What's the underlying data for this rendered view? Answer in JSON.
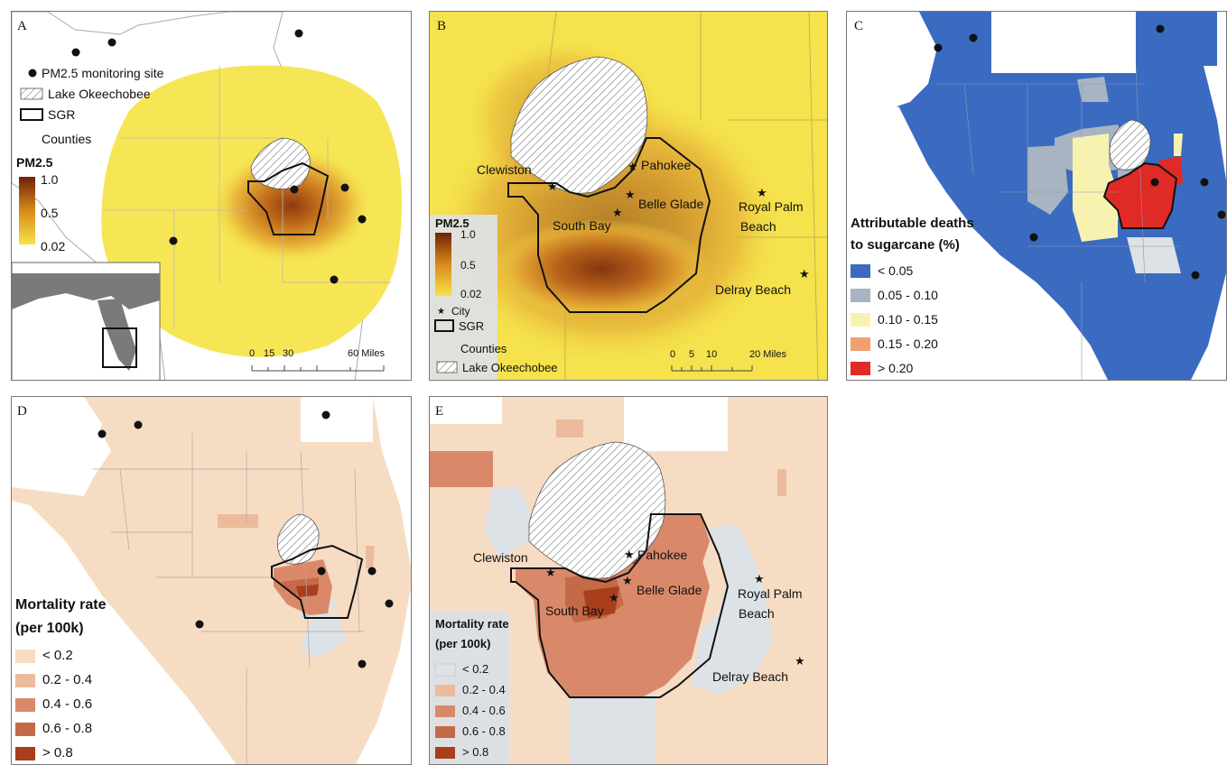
{
  "panels": {
    "A": {
      "label": "A",
      "legend": {
        "site": "PM2.5 monitoring site",
        "lake": "Lake Okeechobee",
        "sgr": "SGR",
        "counties": "Counties",
        "title": "PM2.5",
        "max": "1.0",
        "mid": "0.5",
        "min": "0.02"
      },
      "scale": {
        "ticks": [
          "0",
          "15",
          "30",
          "60 Miles"
        ]
      }
    },
    "B": {
      "label": "B",
      "cities": [
        "Clewiston",
        "Pahokee",
        "Belle Glade",
        "South Bay",
        "Royal Palm",
        "Beach",
        "Delray Beach"
      ],
      "legend": {
        "title": "PM2.5",
        "max": "1.0",
        "mid": "0.5",
        "min": "0.02",
        "city": "City",
        "sgr": "SGR",
        "counties": "Counties",
        "lake": "Lake Okeechobee"
      },
      "scale": {
        "ticks": [
          "0",
          "5",
          "10",
          "20 Miles"
        ]
      }
    },
    "C": {
      "label": "C",
      "legend": {
        "title1": "Attributable deaths",
        "title2": "to sugarcane (%)",
        "classes": [
          "< 0.05",
          "0.05 - 0.10",
          "0.10 - 0.15",
          "0.15 - 0.20",
          "> 0.20"
        ]
      }
    },
    "D": {
      "label": "D",
      "legend": {
        "title1": "Mortality rate",
        "title2": "(per 100k)",
        "classes": [
          "< 0.2",
          "0.2 - 0.4",
          "0.4 - 0.6",
          "0.6 - 0.8",
          "> 0.8"
        ]
      }
    },
    "E": {
      "label": "E",
      "cities": [
        "Clewiston",
        "Pahokee",
        "Belle Glade",
        "South Bay",
        "Royal Palm",
        "Beach",
        "Delray Beach"
      ],
      "legend": {
        "title1": "Mortality rate",
        "title2": "(per 100k)",
        "classes": [
          "< 0.2",
          "0.2 - 0.4",
          "0.4 - 0.6",
          "0.6 - 0.8",
          "> 0.8"
        ]
      }
    }
  },
  "colors": {
    "pm_low": "#f5e44a",
    "pm_mid": "#d88a1a",
    "pm_high": "#7a2a0a",
    "deaths": [
      "#3a6bc0",
      "#a8b4c2",
      "#f7f2b0",
      "#f0a070",
      "#e02a25"
    ],
    "mortality": [
      "#f7dcc4",
      "#ebbb9c",
      "#d9896a",
      "#c46a48",
      "#a83e1c"
    ],
    "nodata": "#d6dade",
    "counties": "#9a9a9a"
  }
}
